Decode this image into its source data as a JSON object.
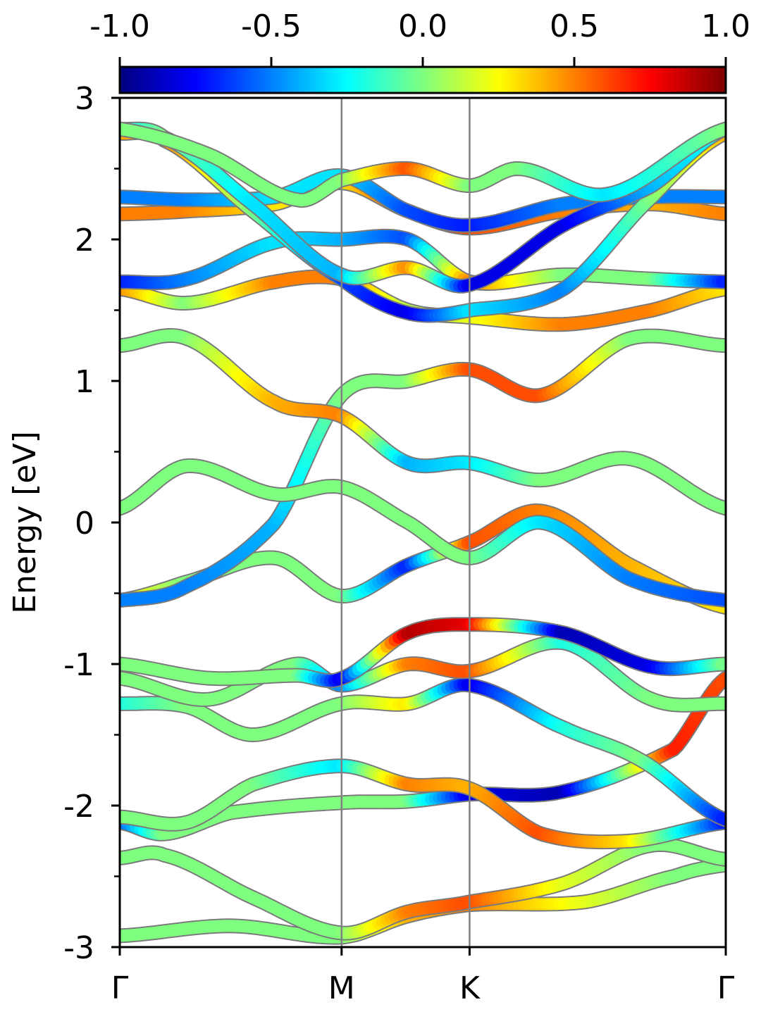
{
  "chart_data": {
    "type": "line",
    "subtype": "electronic band structure with projected color weight",
    "title": "",
    "xlabel": "",
    "ylabel": "Energy [eV]",
    "ylim": [
      -3,
      3
    ],
    "yticks": [
      -3,
      -2,
      -1,
      0,
      1,
      2,
      3
    ],
    "ytick_labels": [
      "-3",
      "-2",
      "-1",
      "0",
      "1",
      "2",
      "3"
    ],
    "y_minor_ticks": [
      -2.5,
      -1.5,
      -0.5,
      0.5,
      1.5,
      2.5
    ],
    "x_path": {
      "labels": [
        "Γ",
        "M",
        "K",
        "Γ"
      ],
      "positions": [
        0,
        1,
        1.577,
        2.732
      ]
    },
    "colorbar": {
      "colormap": "jet",
      "range": [
        -1.0,
        1.0
      ],
      "ticks": [
        -1.0,
        -0.5,
        0.0,
        0.5,
        1.0
      ],
      "tick_labels": [
        "-1.0",
        "-0.5",
        "0.0",
        "0.5",
        "1.0"
      ],
      "placement": "top"
    },
    "grid": false,
    "legend": "none",
    "series": [
      {
        "k": [
          0,
          0.5,
          1,
          1.3,
          1.577,
          2.1,
          2.5,
          2.732
        ],
        "energy": [
          -2.92,
          -2.85,
          -2.93,
          -2.78,
          -2.7,
          -2.68,
          -2.5,
          -2.42
        ],
        "weight": [
          0,
          0,
          0,
          0.4,
          0.5,
          0.2,
          0,
          0
        ]
      },
      {
        "k": [
          0,
          0.2,
          0.6,
          1,
          1.3,
          1.577,
          2.0,
          2.4,
          2.732
        ],
        "energy": [
          -2.37,
          -2.35,
          -2.65,
          -2.9,
          -2.75,
          -2.68,
          -2.55,
          -2.28,
          -2.38
        ],
        "weight": [
          0,
          0,
          0,
          0,
          0.5,
          0.6,
          0.2,
          0,
          0
        ]
      },
      {
        "k": [
          0,
          0.2,
          0.5,
          1,
          1.3,
          1.577,
          2.0,
          2.5,
          2.732
        ],
        "energy": [
          -2.12,
          -2.2,
          -2.05,
          -1.98,
          -1.97,
          -1.92,
          -1.9,
          -1.6,
          -1.1
        ],
        "weight": [
          -0.6,
          0,
          0,
          0,
          0,
          -0.8,
          -0.9,
          0.7,
          0.6
        ]
      },
      {
        "k": [
          0,
          0.3,
          0.6,
          1,
          1.3,
          1.577,
          1.9,
          2.3,
          2.732
        ],
        "energy": [
          -2.08,
          -2.12,
          -1.85,
          -1.72,
          -1.85,
          -1.88,
          -2.2,
          -2.25,
          -2.12
        ],
        "weight": [
          0,
          0,
          0,
          -0.3,
          0.5,
          0.4,
          0.6,
          0.3,
          -0.7
        ]
      },
      {
        "k": [
          0,
          0.3,
          0.6,
          1,
          1.3,
          1.577,
          2.0,
          2.35,
          2.732
        ],
        "energy": [
          -1.28,
          -1.3,
          -1.5,
          -1.28,
          -1.28,
          -1.15,
          -1.45,
          -1.68,
          -2.1
        ],
        "weight": [
          -0.2,
          0,
          0,
          0,
          0.3,
          -0.8,
          -0.2,
          0,
          -0.7
        ]
      },
      {
        "k": [
          0,
          0.4,
          0.8,
          1,
          1.3,
          1.577,
          2.0,
          2.4,
          2.732
        ],
        "energy": [
          -1.1,
          -1.25,
          -1.0,
          -1.15,
          -1.0,
          -1.05,
          -0.85,
          -1.25,
          -1.28
        ],
        "weight": [
          0,
          0,
          0,
          -0.5,
          0.5,
          0.6,
          -0.2,
          0,
          0
        ]
      },
      {
        "k": [
          0,
          0.4,
          0.8,
          1,
          1.3,
          1.577,
          2.0,
          2.4,
          2.732
        ],
        "energy": [
          -1.0,
          -1.1,
          -1.08,
          -1.1,
          -0.78,
          -0.72,
          -0.78,
          -1.02,
          -1.0
        ],
        "weight": [
          0,
          0,
          0,
          -0.8,
          0.9,
          0.8,
          -0.9,
          -0.8,
          0
        ]
      },
      {
        "k": [
          0,
          0.3,
          0.7,
          1,
          1.3,
          1.577,
          1.9,
          2.3,
          2.732
        ],
        "energy": [
          -0.55,
          -0.42,
          -0.25,
          -0.52,
          -0.3,
          -0.14,
          0.08,
          -0.3,
          -0.6
        ],
        "weight": [
          0.3,
          0,
          0,
          0,
          -0.7,
          0.6,
          0.5,
          0.4,
          0.3
        ]
      },
      {
        "k": [
          0,
          0.3,
          0.7,
          1,
          1.3,
          1.577,
          1.9,
          2.3,
          2.732
        ],
        "energy": [
          -0.55,
          -0.45,
          0.0,
          0.9,
          1.0,
          1.08,
          0.9,
          1.3,
          1.25
        ],
        "weight": [
          -0.5,
          -0.5,
          -0.4,
          0,
          0,
          0.6,
          0.6,
          0,
          0
        ]
      },
      {
        "k": [
          0,
          0.3,
          0.7,
          1,
          1.3,
          1.577,
          1.9,
          2.3,
          2.732
        ],
        "energy": [
          0.1,
          0.4,
          0.2,
          0.25,
          0.0,
          -0.25,
          0.0,
          -0.4,
          -0.55
        ],
        "weight": [
          0,
          0,
          0,
          0,
          0,
          0,
          -0.3,
          -0.5,
          -0.6
        ]
      },
      {
        "k": [
          0,
          0.3,
          0.7,
          1,
          1.3,
          1.577,
          1.9,
          2.3,
          2.732
        ],
        "energy": [
          1.25,
          1.3,
          0.85,
          0.75,
          0.42,
          0.42,
          0.3,
          0.45,
          0.1
        ],
        "weight": [
          0,
          0,
          0.4,
          0.5,
          -0.4,
          -0.3,
          0,
          0,
          0
        ]
      },
      {
        "k": [
          0,
          0.3,
          0.7,
          1,
          1.3,
          1.577,
          2.0,
          2.4,
          2.732
        ],
        "energy": [
          1.65,
          1.55,
          1.7,
          1.72,
          1.5,
          1.45,
          1.4,
          1.5,
          1.65
        ],
        "weight": [
          0.5,
          0,
          0.5,
          0.5,
          0.1,
          0.2,
          0.5,
          0.5,
          0.3
        ]
      },
      {
        "k": [
          0,
          0.3,
          0.7,
          1,
          1.3,
          1.577,
          2.0,
          2.4,
          2.732
        ],
        "energy": [
          1.7,
          1.72,
          1.98,
          2.0,
          2.0,
          1.7,
          1.75,
          1.72,
          1.7
        ],
        "weight": [
          -0.7,
          -0.5,
          -0.3,
          -0.4,
          -0.6,
          0.5,
          0,
          0,
          -0.7
        ]
      },
      {
        "k": [
          0,
          0.3,
          0.7,
          1,
          1.3,
          1.577,
          2.0,
          2.4,
          2.732
        ],
        "energy": [
          2.18,
          2.2,
          2.25,
          2.4,
          2.2,
          2.08,
          2.2,
          2.25,
          2.18
        ],
        "weight": [
          0.5,
          0.5,
          0.3,
          0.3,
          0.6,
          0.6,
          0.5,
          0.4,
          0.5
        ]
      },
      {
        "k": [
          0,
          0.3,
          0.7,
          1,
          1.3,
          1.577,
          2.0,
          2.4,
          2.732
        ],
        "energy": [
          2.3,
          2.28,
          2.3,
          2.45,
          2.2,
          2.1,
          2.25,
          2.3,
          2.3
        ],
        "weight": [
          -0.5,
          -0.5,
          -0.3,
          -0.3,
          -0.6,
          -0.7,
          -0.5,
          -0.5,
          -0.5
        ]
      },
      {
        "k": [
          0,
          0.2,
          0.6,
          1,
          1.3,
          1.577,
          2.0,
          2.4,
          2.732
        ],
        "energy": [
          2.75,
          2.7,
          2.2,
          1.72,
          1.48,
          1.5,
          1.65,
          2.3,
          2.75
        ],
        "weight": [
          0.4,
          0.5,
          0,
          -0.6,
          -0.8,
          -0.3,
          -0.5,
          0,
          0.4
        ]
      },
      {
        "k": [
          0,
          0.2,
          0.6,
          1,
          1.3,
          1.577,
          2.0,
          2.4,
          2.732
        ],
        "energy": [
          2.78,
          2.72,
          2.25,
          1.75,
          1.8,
          1.68,
          2.1,
          2.38,
          2.78
        ],
        "weight": [
          -0.3,
          0,
          -0.3,
          -0.4,
          0.5,
          -0.8,
          -0.8,
          -0.4,
          -0.2
        ]
      },
      {
        "k": [
          0,
          0.4,
          0.8,
          1,
          1.3,
          1.577,
          1.8,
          2.2,
          2.732
        ],
        "energy": [
          2.78,
          2.6,
          2.28,
          2.42,
          2.5,
          2.38,
          2.5,
          2.32,
          2.78
        ],
        "weight": [
          0,
          0,
          0,
          0,
          0.6,
          0,
          0,
          -0.3,
          0
        ]
      }
    ]
  }
}
